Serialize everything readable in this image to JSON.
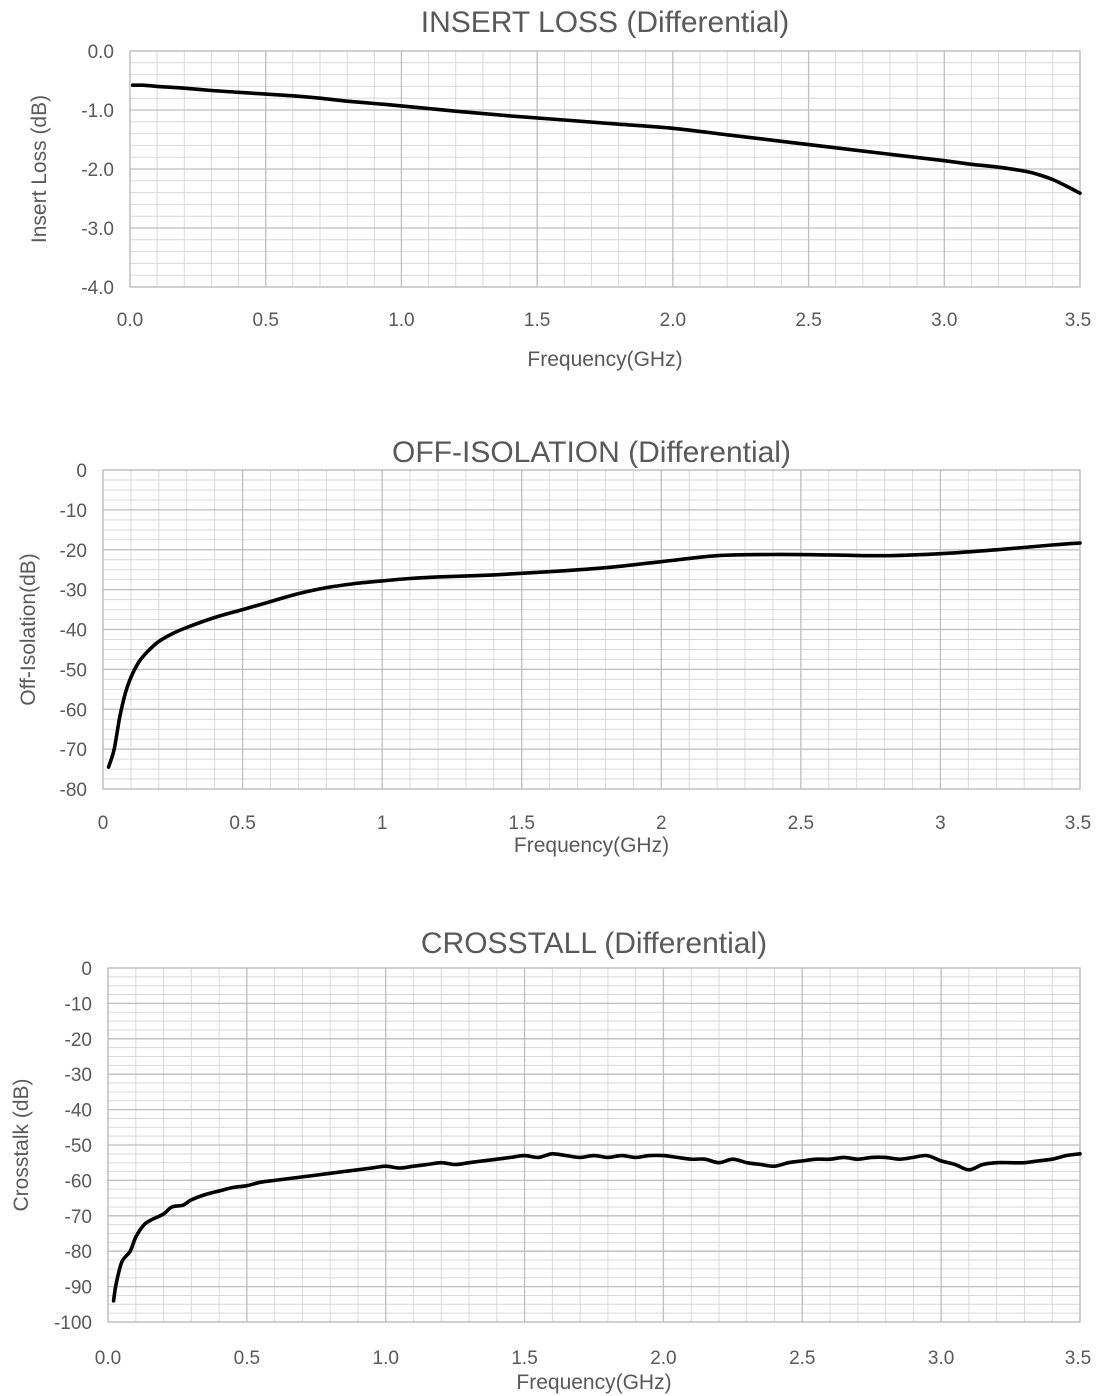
{
  "chart_data": [
    {
      "type": "line",
      "title": "INSERT LOSS (Differential)",
      "xlabel": "Frequency(GHz)",
      "ylabel": "Insert Loss (dB)",
      "xlim": [
        0,
        3.5
      ],
      "ylim": [
        -4,
        0
      ],
      "x_ticks": [
        "0.0",
        "0.5",
        "1.0",
        "1.5",
        "2.0",
        "2.5",
        "3.0",
        "3.5"
      ],
      "y_ticks": [
        "0.0",
        "-1.0",
        "-2.0",
        "-3.0",
        "-4.0"
      ],
      "grid": true,
      "series": [
        {
          "x": [
            0.01,
            0.05,
            0.1,
            0.2,
            0.3,
            0.4,
            0.5,
            0.6,
            0.7,
            0.8,
            0.9,
            1.0,
            1.2,
            1.4,
            1.6,
            1.8,
            2.0,
            2.2,
            2.4,
            2.6,
            2.8,
            3.0,
            3.1,
            3.2,
            3.3,
            3.35,
            3.4,
            3.45,
            3.5
          ],
          "y": [
            -0.58,
            -0.58,
            -0.6,
            -0.63,
            -0.67,
            -0.7,
            -0.73,
            -0.76,
            -0.8,
            -0.85,
            -0.89,
            -0.93,
            -1.02,
            -1.1,
            -1.17,
            -1.24,
            -1.31,
            -1.42,
            -1.53,
            -1.64,
            -1.75,
            -1.86,
            -1.92,
            -1.97,
            -2.04,
            -2.1,
            -2.18,
            -2.29,
            -2.41
          ]
        }
      ]
    },
    {
      "type": "line",
      "title": "OFF-ISOLATION (Differential)",
      "xlabel": "Frequency(GHz)",
      "ylabel": "Off-Isolation(dB)",
      "xlim": [
        0,
        3.5
      ],
      "ylim": [
        -80,
        0
      ],
      "x_ticks": [
        "0",
        "0.5",
        "1",
        "1.5",
        "2",
        "2.5",
        "3",
        "3.5"
      ],
      "y_ticks": [
        "0",
        "-10",
        "-20",
        "-30",
        "-40",
        "-50",
        "-60",
        "-70",
        "-80"
      ],
      "grid": true,
      "series": [
        {
          "x": [
            0.02,
            0.04,
            0.06,
            0.08,
            0.1,
            0.13,
            0.16,
            0.2,
            0.25,
            0.3,
            0.4,
            0.5,
            0.6,
            0.7,
            0.8,
            0.9,
            1.0,
            1.1,
            1.2,
            1.4,
            1.6,
            1.8,
            2.0,
            2.2,
            2.4,
            2.6,
            2.8,
            3.0,
            3.2,
            3.4,
            3.5
          ],
          "y": [
            -74.5,
            -70,
            -62,
            -56,
            -52,
            -48,
            -45.5,
            -43,
            -41,
            -39.5,
            -37,
            -35,
            -33,
            -31,
            -29.5,
            -28.5,
            -27.8,
            -27.2,
            -26.8,
            -26.3,
            -25.5,
            -24.5,
            -23,
            -21.5,
            -21.2,
            -21.3,
            -21.5,
            -21,
            -20,
            -18.8,
            -18.3
          ]
        }
      ]
    },
    {
      "type": "line",
      "title": "CROSSTALL (Differential)",
      "xlabel": "Frequency(GHz)",
      "ylabel": "Crosstalk (dB)",
      "xlim": [
        0,
        3.5
      ],
      "ylim": [
        -100,
        0
      ],
      "x_ticks": [
        "0.0",
        "0.5",
        "1.0",
        "1.5",
        "2.0",
        "2.5",
        "3.0",
        "3.5"
      ],
      "y_ticks": [
        "0",
        "-10",
        "-20",
        "-30",
        "-40",
        "-50",
        "-60",
        "-70",
        "-80",
        "-90",
        "-100"
      ],
      "grid": true,
      "series": [
        {
          "x": [
            0.02,
            0.03,
            0.05,
            0.08,
            0.1,
            0.13,
            0.16,
            0.2,
            0.23,
            0.27,
            0.3,
            0.35,
            0.4,
            0.45,
            0.5,
            0.55,
            0.6,
            0.65,
            0.7,
            0.75,
            0.8,
            0.85,
            0.9,
            0.95,
            1.0,
            1.05,
            1.1,
            1.15,
            1.2,
            1.25,
            1.3,
            1.35,
            1.4,
            1.45,
            1.5,
            1.55,
            1.6,
            1.65,
            1.7,
            1.75,
            1.8,
            1.85,
            1.9,
            1.95,
            2.0,
            2.05,
            2.1,
            2.15,
            2.2,
            2.25,
            2.3,
            2.35,
            2.4,
            2.45,
            2.5,
            2.55,
            2.6,
            2.65,
            2.7,
            2.75,
            2.8,
            2.85,
            2.9,
            2.95,
            3.0,
            3.05,
            3.1,
            3.15,
            3.2,
            3.25,
            3.3,
            3.35,
            3.4,
            3.45,
            3.5
          ],
          "y": [
            -94,
            -89,
            -83,
            -80,
            -76,
            -72.5,
            -71,
            -69.5,
            -67.5,
            -67,
            -65.5,
            -64,
            -63,
            -62,
            -61.5,
            -60.5,
            -60,
            -59.5,
            -59,
            -58.5,
            -58,
            -57.5,
            -57,
            -56.5,
            -56,
            -56.5,
            -56,
            -55.5,
            -55,
            -55.5,
            -55,
            -54.5,
            -54,
            -53.5,
            -53,
            -53.5,
            -52.5,
            -53,
            -53.5,
            -53,
            -53.5,
            -53,
            -53.5,
            -53,
            -53,
            -53.5,
            -54,
            -54,
            -55,
            -54,
            -55,
            -55.5,
            -56,
            -55,
            -54.5,
            -54,
            -54,
            -53.5,
            -54,
            -53.5,
            -53.5,
            -54,
            -53.5,
            -53,
            -54.5,
            -55.5,
            -57,
            -55.5,
            -55,
            -55,
            -55,
            -54.5,
            -54,
            -53,
            -52.5
          ]
        }
      ]
    }
  ]
}
